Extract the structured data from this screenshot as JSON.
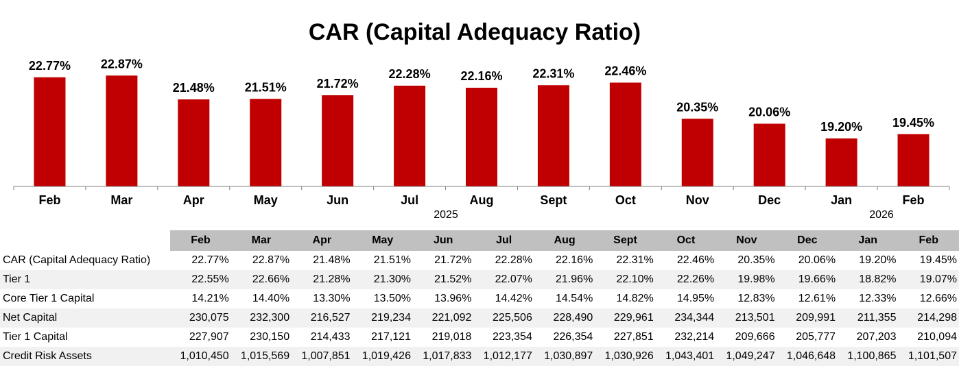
{
  "chart_data": {
    "type": "bar",
    "title": "CAR (Capital Adequacy Ratio)",
    "categories": [
      "Feb",
      "Mar",
      "Apr",
      "May",
      "Jun",
      "Jul",
      "Aug",
      "Sept",
      "Oct",
      "Nov",
      "Dec",
      "Jan",
      "Feb"
    ],
    "values": [
      22.77,
      22.87,
      21.48,
      21.51,
      21.72,
      22.28,
      22.16,
      22.31,
      22.46,
      20.35,
      20.06,
      19.2,
      19.45
    ],
    "data_labels": [
      "22.77%",
      "22.87%",
      "21.48%",
      "21.51%",
      "21.72%",
      "22.28%",
      "22.16%",
      "22.31%",
      "22.46%",
      "20.35%",
      "20.06%",
      "19.20%",
      "19.45%"
    ],
    "year_groups": [
      "2025",
      "2026"
    ],
    "bar_color": "#c00000",
    "ylim": [
      16.4,
      23.4
    ],
    "xlabel": "",
    "ylabel": ""
  },
  "table": {
    "headers": [
      "Feb",
      "Mar",
      "Apr",
      "May",
      "Jun",
      "Jul",
      "Aug",
      "Sept",
      "Oct",
      "Nov",
      "Dec",
      "Jan",
      "Feb"
    ],
    "rows": [
      {
        "label": "CAR (Capital Adequacy Ratio)",
        "values": [
          "22.77%",
          "22.87%",
          "21.48%",
          "21.51%",
          "21.72%",
          "22.28%",
          "22.16%",
          "22.31%",
          "22.46%",
          "20.35%",
          "20.06%",
          "19.20%",
          "19.45%"
        ]
      },
      {
        "label": "Tier 1",
        "values": [
          "22.55%",
          "22.66%",
          "21.28%",
          "21.30%",
          "21.52%",
          "22.07%",
          "21.96%",
          "22.10%",
          "22.26%",
          "19.98%",
          "19.66%",
          "18.82%",
          "19.07%"
        ]
      },
      {
        "label": "Core Tier 1 Capital",
        "values": [
          "14.21%",
          "14.40%",
          "13.30%",
          "13.50%",
          "13.96%",
          "14.42%",
          "14.54%",
          "14.82%",
          "14.95%",
          "12.83%",
          "12.61%",
          "12.33%",
          "12.66%"
        ]
      },
      {
        "label": "Net Capital",
        "values": [
          "230,075",
          "232,300",
          "216,527",
          "219,234",
          "221,092",
          "225,506",
          "228,490",
          "229,961",
          "234,344",
          "213,501",
          "209,991",
          "211,355",
          "214,298"
        ]
      },
      {
        "label": "Tier 1 Capital",
        "values": [
          "227,907",
          "230,150",
          "214,433",
          "217,121",
          "219,018",
          "223,354",
          "226,354",
          "227,851",
          "232,214",
          "209,666",
          "205,777",
          "207,203",
          "210,094"
        ]
      },
      {
        "label": "Credit Risk Assets",
        "values": [
          "1,010,450",
          "1,015,569",
          "1,007,851",
          "1,019,426",
          "1,017,833",
          "1,012,177",
          "1,030,897",
          "1,030,926",
          "1,043,401",
          "1,049,247",
          "1,046,648",
          "1,100,865",
          "1,101,507"
        ]
      }
    ]
  }
}
